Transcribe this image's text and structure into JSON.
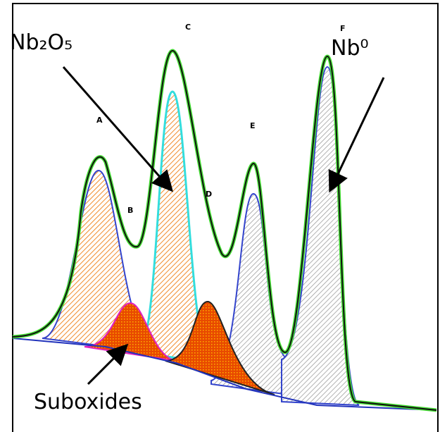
{
  "annotations": {
    "oxide": "Nb₂O₅",
    "metal": "Nb⁰",
    "suboxides": "Suboxides"
  },
  "peaks": [
    "A",
    "B",
    "C",
    "D",
    "E",
    "F"
  ]
}
